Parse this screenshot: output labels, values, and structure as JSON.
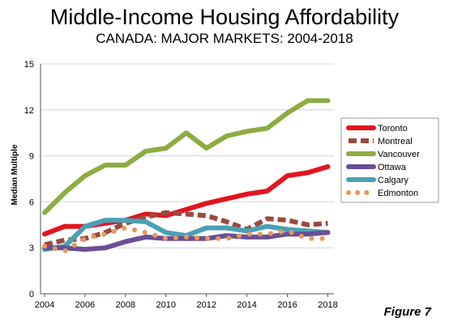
{
  "chart_data": {
    "type": "line",
    "title": "Middle-Income Housing Affordability",
    "subtitle": "CANADA: MAJOR MARKETS: 2004-2018",
    "xlabel": "",
    "ylabel": "Median Multiple",
    "x": [
      2004,
      2005,
      2006,
      2007,
      2008,
      2009,
      2010,
      2011,
      2012,
      2013,
      2014,
      2015,
      2016,
      2017,
      2018
    ],
    "xticks": [
      "2004",
      "2006",
      "2008",
      "2010",
      "2012",
      "2014",
      "2016",
      "2018"
    ],
    "xlim": [
      2003.8,
      2018.3
    ],
    "ylim": [
      0,
      15
    ],
    "yticks": [
      "0",
      "3",
      "6",
      "9",
      "12",
      "15"
    ],
    "grid": true,
    "legend_position": "right",
    "series": [
      {
        "name": "Toronto",
        "color": "#e3141f",
        "style": "solid",
        "values": [
          3.9,
          4.4,
          4.4,
          4.6,
          4.8,
          5.2,
          5.1,
          5.5,
          5.9,
          6.2,
          6.5,
          6.7,
          7.7,
          7.9,
          8.3
        ]
      },
      {
        "name": "Montreal",
        "color": "#9a4a3e",
        "style": "dashed",
        "values": [
          3.2,
          3.5,
          3.6,
          4.0,
          4.6,
          5.0,
          5.3,
          5.2,
          5.1,
          4.7,
          4.2,
          4.9,
          4.8,
          4.5,
          4.6
        ]
      },
      {
        "name": "Vancouver",
        "color": "#8dac42",
        "style": "solid",
        "values": [
          5.3,
          6.6,
          7.7,
          8.4,
          8.4,
          9.3,
          9.5,
          10.5,
          9.5,
          10.3,
          10.6,
          10.8,
          11.8,
          12.6,
          12.6
        ]
      },
      {
        "name": "Ottawa",
        "color": "#6b4e96",
        "style": "solid",
        "values": [
          3.0,
          3.0,
          2.9,
          3.0,
          3.4,
          3.7,
          3.6,
          3.6,
          3.6,
          3.8,
          3.7,
          3.7,
          3.9,
          3.9,
          4.0
        ]
      },
      {
        "name": "Calgary",
        "color": "#4aa0b6",
        "style": "solid",
        "values": [
          2.9,
          3.1,
          4.4,
          4.8,
          4.8,
          4.7,
          4.0,
          3.8,
          4.3,
          4.3,
          4.1,
          4.4,
          4.2,
          4.1,
          4.0
        ]
      },
      {
        "name": "Edmonton",
        "color": "#e29a5c",
        "style": "dotted",
        "values": [
          3.1,
          2.8,
          3.6,
          3.9,
          4.3,
          4.0,
          3.6,
          3.7,
          3.6,
          3.6,
          3.9,
          3.9,
          4.1,
          3.6,
          3.6
        ]
      }
    ]
  },
  "figure_label": "Figure 7"
}
